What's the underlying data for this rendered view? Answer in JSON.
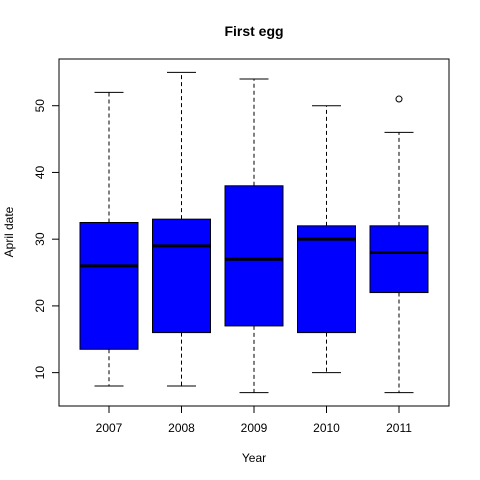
{
  "chart_data": {
    "type": "boxplot",
    "title": "First egg",
    "xlabel": "Year",
    "ylabel": "April date",
    "categories": [
      "2007",
      "2008",
      "2009",
      "2010",
      "2011"
    ],
    "yticks": [
      10,
      20,
      30,
      40,
      50
    ],
    "ylim": [
      5,
      57
    ],
    "box_color": "#0000ff",
    "grid": false,
    "boxes": [
      {
        "category": "2007",
        "whisker_low": 8,
        "q1": 13.5,
        "median": 26,
        "q3": 32.5,
        "whisker_high": 52,
        "outliers": []
      },
      {
        "category": "2008",
        "whisker_low": 8,
        "q1": 16,
        "median": 29,
        "q3": 33,
        "whisker_high": 55,
        "outliers": []
      },
      {
        "category": "2009",
        "whisker_low": 7,
        "q1": 17,
        "median": 27,
        "q3": 38,
        "whisker_high": 54,
        "outliers": []
      },
      {
        "category": "2010",
        "whisker_low": 10,
        "q1": 16,
        "median": 30,
        "q3": 32,
        "whisker_high": 50,
        "outliers": []
      },
      {
        "category": "2011",
        "whisker_low": 7,
        "q1": 22,
        "median": 28,
        "q3": 32,
        "whisker_high": 46,
        "outliers": [
          51
        ]
      }
    ]
  }
}
